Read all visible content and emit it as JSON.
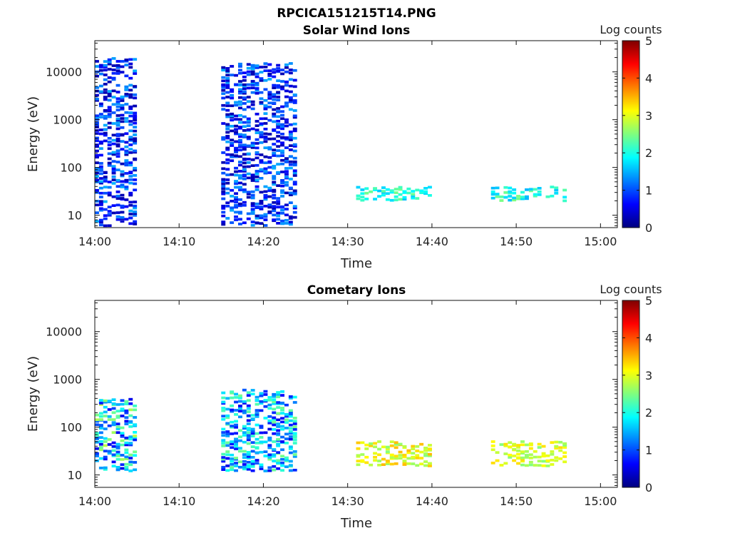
{
  "figure_title": "RPCICA151215T14.PNG",
  "chart_data": [
    {
      "type": "heatmap",
      "title": "Solar Wind Ions",
      "xlabel": "Time",
      "ylabel": "Energy (eV)",
      "x_range": [
        "14:00",
        "15:02"
      ],
      "x_ticks": [
        "14:00",
        "14:10",
        "14:20",
        "14:30",
        "14:40",
        "14:50",
        "15:00"
      ],
      "y_scale": "log",
      "ylim": [
        5.5,
        45000
      ],
      "y_ticks": [
        "10",
        "100",
        "1000",
        "10000"
      ],
      "colorbar": {
        "label": "Log counts",
        "range": [
          0,
          5
        ],
        "ticks": [
          "0",
          "1",
          "2",
          "3",
          "4",
          "5"
        ],
        "colormap": "jet"
      },
      "time_bins_min": 0.5,
      "active_intervals": [
        [
          "14:00",
          "14:05"
        ],
        [
          "14:15",
          "14:24"
        ],
        [
          "14:31",
          "14:40"
        ],
        [
          "14:47",
          "14:56"
        ]
      ],
      "features": [
        {
          "time": "14:00-14:05",
          "energy_eV": [
            6,
            20000
          ],
          "log_counts": [
            0,
            1.5
          ],
          "note": "sparse scattered counts"
        },
        {
          "time": "14:15-14:24",
          "energy_eV": [
            6,
            15000
          ],
          "log_counts": [
            0,
            1.5
          ]
        },
        {
          "time": "14:31-14:40",
          "energy_eV": [
            20,
            40
          ],
          "log_counts": [
            1.5,
            2.5
          ]
        },
        {
          "time": "14:47-14:56",
          "energy_eV": [
            20,
            40
          ],
          "log_counts": [
            1.5,
            2.5
          ]
        }
      ]
    },
    {
      "type": "heatmap",
      "title": "Cometary Ions",
      "xlabel": "Time",
      "ylabel": "Energy (eV)",
      "x_range": [
        "14:00",
        "15:02"
      ],
      "x_ticks": [
        "14:00",
        "14:10",
        "14:20",
        "14:30",
        "14:40",
        "14:50",
        "15:00"
      ],
      "y_scale": "log",
      "ylim": [
        5.5,
        45000
      ],
      "y_ticks": [
        "10",
        "100",
        "1000",
        "10000"
      ],
      "colorbar": {
        "label": "Log counts",
        "range": [
          0,
          5
        ],
        "ticks": [
          "0",
          "1",
          "2",
          "3",
          "4",
          "5"
        ],
        "colormap": "jet"
      },
      "time_bins_min": 0.5,
      "active_intervals": [
        [
          "14:00",
          "14:05"
        ],
        [
          "14:15",
          "14:24"
        ],
        [
          "14:31",
          "14:40"
        ],
        [
          "14:47",
          "14:56"
        ]
      ],
      "features": [
        {
          "time": "14:00-14:05",
          "energy_eV": [
            12,
            400
          ],
          "log_counts": [
            0.5,
            2.8
          ]
        },
        {
          "time": "14:15-14:24",
          "energy_eV": [
            12,
            600
          ],
          "log_counts": [
            0.5,
            2.5
          ]
        },
        {
          "time": "14:31-14:40",
          "energy_eV": [
            15,
            50
          ],
          "log_counts": [
            2.5,
            3.5
          ]
        },
        {
          "time": "14:47-14:56",
          "energy_eV": [
            15,
            50
          ],
          "log_counts": [
            2.5,
            3.3
          ]
        }
      ]
    }
  ]
}
